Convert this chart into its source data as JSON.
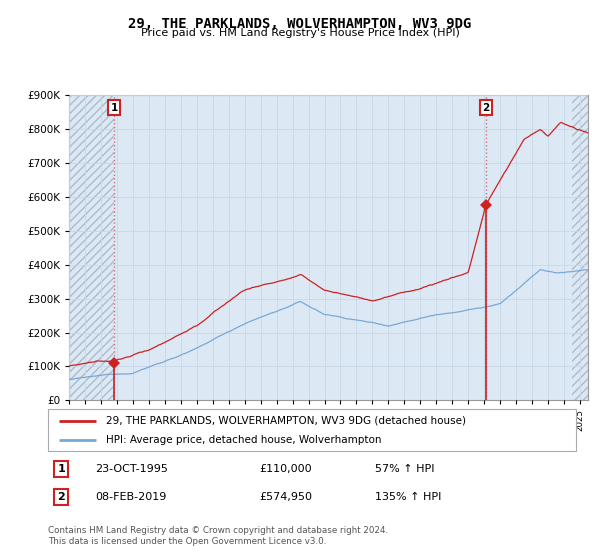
{
  "title": "29, THE PARKLANDS, WOLVERHAMPTON, WV3 9DG",
  "subtitle": "Price paid vs. HM Land Registry's House Price Index (HPI)",
  "legend_line1": "29, THE PARKLANDS, WOLVERHAMPTON, WV3 9DG (detached house)",
  "legend_line2": "HPI: Average price, detached house, Wolverhampton",
  "annotation1_date": "23-OCT-1995",
  "annotation1_price": "£110,000",
  "annotation1_hpi": "57% ↑ HPI",
  "annotation2_date": "08-FEB-2019",
  "annotation2_price": "£574,950",
  "annotation2_hpi": "135% ↑ HPI",
  "footer": "Contains HM Land Registry data © Crown copyright and database right 2024.\nThis data is licensed under the Open Government Licence v3.0.",
  "hpi_color": "#7aa8d4",
  "price_color": "#cc2222",
  "grid_color": "#c8d8e8",
  "bg_color": "#dde8f5",
  "hatch_color": "#c8d4e4",
  "ylim": [
    0,
    900000
  ],
  "yticks": [
    0,
    100000,
    200000,
    300000,
    400000,
    500000,
    600000,
    700000,
    800000,
    900000
  ],
  "xlim_start": 1993.0,
  "xlim_end": 2025.5,
  "sale1_x": 1995.82,
  "sale1_y": 110000,
  "sale2_x": 2019.1,
  "sale2_y": 574950,
  "hatch_left_end": 1995.82,
  "hatch_right_start": 2024.5
}
